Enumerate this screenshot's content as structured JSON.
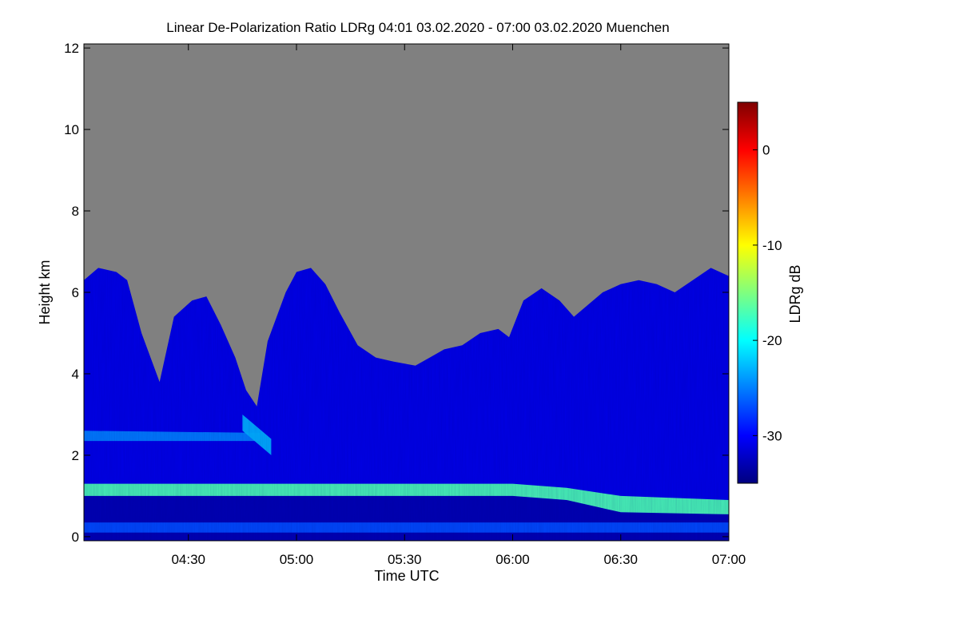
{
  "chart_data": {
    "type": "heatmap",
    "title": "Linear De-Polarization Ratio LDRg   04:01 03.02.2020 - 07:00 03.02.2020 Muenchen",
    "xlabel": "Time UTC",
    "ylabel": "Height km",
    "x_range_minutes_utc": [
      241,
      420
    ],
    "x_ticks": [
      {
        "minute": 270,
        "label": "04:30"
      },
      {
        "minute": 300,
        "label": "05:00"
      },
      {
        "minute": 330,
        "label": "05:30"
      },
      {
        "minute": 360,
        "label": "06:00"
      },
      {
        "minute": 390,
        "label": "06:30"
      },
      {
        "minute": 420,
        "label": "07:00"
      }
    ],
    "y_range_km": [
      -0.1,
      12.1
    ],
    "y_ticks": [
      0,
      2,
      4,
      6,
      8,
      10,
      12
    ],
    "colorbar": {
      "label": "LDRg dB",
      "range_db": [
        -35,
        5
      ],
      "ticks": [
        0,
        -10,
        -20,
        -30
      ],
      "colormap": [
        "#00007f",
        "#0000ff",
        "#007fff",
        "#00ffff",
        "#7fff7f",
        "#ffff00",
        "#ff7f00",
        "#ff0000",
        "#7f0000"
      ]
    },
    "no_signal_color": "#808080",
    "signal_top_km": [
      {
        "t": 241,
        "h": 6.3
      },
      {
        "t": 245,
        "h": 6.6
      },
      {
        "t": 250,
        "h": 6.5
      },
      {
        "t": 253,
        "h": 6.3
      },
      {
        "t": 257,
        "h": 5.0
      },
      {
        "t": 262,
        "h": 3.8
      },
      {
        "t": 266,
        "h": 5.4
      },
      {
        "t": 271,
        "h": 5.8
      },
      {
        "t": 275,
        "h": 5.9
      },
      {
        "t": 279,
        "h": 5.2
      },
      {
        "t": 283,
        "h": 4.4
      },
      {
        "t": 286,
        "h": 3.6
      },
      {
        "t": 289,
        "h": 3.2
      },
      {
        "t": 292,
        "h": 4.8
      },
      {
        "t": 297,
        "h": 6.0
      },
      {
        "t": 300,
        "h": 6.5
      },
      {
        "t": 304,
        "h": 6.6
      },
      {
        "t": 308,
        "h": 6.2
      },
      {
        "t": 312,
        "h": 5.5
      },
      {
        "t": 317,
        "h": 4.7
      },
      {
        "t": 322,
        "h": 4.4
      },
      {
        "t": 327,
        "h": 4.3
      },
      {
        "t": 333,
        "h": 4.2
      },
      {
        "t": 337,
        "h": 4.4
      },
      {
        "t": 341,
        "h": 4.6
      },
      {
        "t": 346,
        "h": 4.7
      },
      {
        "t": 351,
        "h": 5.0
      },
      {
        "t": 356,
        "h": 5.1
      },
      {
        "t": 359,
        "h": 4.9
      },
      {
        "t": 363,
        "h": 5.8
      },
      {
        "t": 368,
        "h": 6.1
      },
      {
        "t": 373,
        "h": 5.8
      },
      {
        "t": 377,
        "h": 5.4
      },
      {
        "t": 381,
        "h": 5.7
      },
      {
        "t": 385,
        "h": 6.0
      },
      {
        "t": 390,
        "h": 6.2
      },
      {
        "t": 395,
        "h": 6.3
      },
      {
        "t": 400,
        "h": 6.2
      },
      {
        "t": 405,
        "h": 6.0
      },
      {
        "t": 410,
        "h": 6.3
      },
      {
        "t": 415,
        "h": 6.6
      },
      {
        "t": 420,
        "h": 6.4
      }
    ],
    "features": [
      {
        "name": "boundary-layer-aerosol-band",
        "top_km": [
          {
            "t": 241,
            "h": 1.3
          },
          {
            "t": 360,
            "h": 1.3
          },
          {
            "t": 375,
            "h": 1.2
          },
          {
            "t": 390,
            "h": 1.0
          },
          {
            "t": 420,
            "h": 0.9
          }
        ],
        "bottom_km": [
          {
            "t": 241,
            "h": 1.0
          },
          {
            "t": 360,
            "h": 1.0
          },
          {
            "t": 375,
            "h": 0.9
          },
          {
            "t": 390,
            "h": 0.6
          },
          {
            "t": 420,
            "h": 0.55
          }
        ],
        "ldr_db": -17
      },
      {
        "name": "elevated-layer",
        "top_km": [
          {
            "t": 241,
            "h": 2.6
          },
          {
            "t": 290,
            "h": 2.55
          }
        ],
        "bottom_km": [
          {
            "t": 241,
            "h": 2.35
          },
          {
            "t": 290,
            "h": 2.35
          }
        ],
        "ldr_db": -25
      },
      {
        "name": "falling-streak",
        "top_km": [
          {
            "t": 285,
            "h": 3.0
          },
          {
            "t": 293,
            "h": 2.4
          }
        ],
        "bottom_km": [
          {
            "t": 285,
            "h": 2.6
          },
          {
            "t": 293,
            "h": 2.0
          }
        ],
        "ldr_db": -23
      },
      {
        "name": "near-surface-layer",
        "top_km": [
          {
            "t": 241,
            "h": 0.35
          },
          {
            "t": 420,
            "h": 0.35
          }
        ],
        "bottom_km": [
          {
            "t": 241,
            "h": 0.1
          },
          {
            "t": 420,
            "h": 0.1
          }
        ],
        "ldr_db": -27
      }
    ],
    "background_ldr_db": {
      "free_troposphere": -31,
      "below_band": -33
    }
  }
}
